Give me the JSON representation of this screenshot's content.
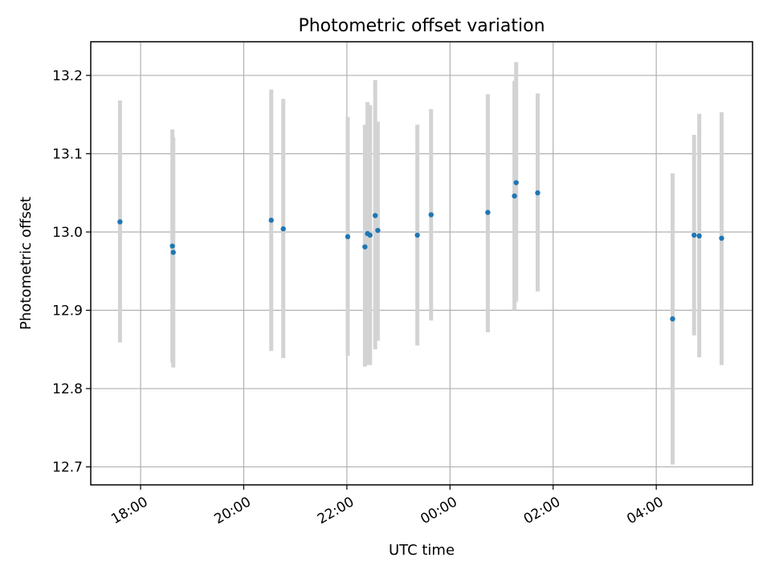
{
  "chart_data": {
    "type": "scatter",
    "title": "Photometric offset variation",
    "xlabel": "UTC time",
    "ylabel": "Photometric offset",
    "x_axis": "time",
    "x_start": "17:00",
    "xlim": [
      "17:02",
      "05:52"
    ],
    "ylim": [
      12.677,
      13.243
    ],
    "grid": true,
    "x_ticks": [
      "18:00",
      "20:00",
      "22:00",
      "00:00",
      "02:00",
      "04:00"
    ],
    "y_ticks": [
      12.7,
      12.8,
      12.9,
      13.0,
      13.1,
      13.2
    ],
    "y_tick_labels": [
      "12.7",
      "12.8",
      "12.9",
      "13.0",
      "13.1",
      "13.2"
    ],
    "colors": {
      "point": "#1f77b4",
      "errorbar": "#d3d3d3"
    },
    "points": [
      {
        "t": "17:36",
        "y": 13.013,
        "ymin": 12.859,
        "ymax": 13.168
      },
      {
        "t": "18:37",
        "y": 12.982,
        "ymin": 12.833,
        "ymax": 13.131
      },
      {
        "t": "18:38",
        "y": 12.974,
        "ymin": 12.827,
        "ymax": 13.121
      },
      {
        "t": "20:32",
        "y": 13.015,
        "ymin": 12.848,
        "ymax": 13.182
      },
      {
        "t": "20:46",
        "y": 13.004,
        "ymin": 12.839,
        "ymax": 13.17
      },
      {
        "t": "22:01",
        "y": 12.994,
        "ymin": 12.842,
        "ymax": 13.147
      },
      {
        "t": "22:21",
        "y": 12.981,
        "ymin": 12.828,
        "ymax": 13.137
      },
      {
        "t": "22:24",
        "y": 12.998,
        "ymin": 12.83,
        "ymax": 13.166
      },
      {
        "t": "22:27",
        "y": 12.996,
        "ymin": 12.83,
        "ymax": 13.162
      },
      {
        "t": "22:33",
        "y": 13.021,
        "ymin": 12.85,
        "ymax": 13.194
      },
      {
        "t": "22:36",
        "y": 13.002,
        "ymin": 12.861,
        "ymax": 13.141
      },
      {
        "t": "23:22",
        "y": 12.996,
        "ymin": 12.855,
        "ymax": 13.137
      },
      {
        "t": "23:38",
        "y": 13.022,
        "ymin": 12.887,
        "ymax": 13.157
      },
      {
        "t": "00:44",
        "y": 13.025,
        "ymin": 12.872,
        "ymax": 13.176
      },
      {
        "t": "01:15",
        "y": 13.046,
        "ymin": 12.9,
        "ymax": 13.193
      },
      {
        "t": "01:17",
        "y": 13.063,
        "ymin": 12.911,
        "ymax": 13.217
      },
      {
        "t": "01:42",
        "y": 13.05,
        "ymin": 12.924,
        "ymax": 13.177
      },
      {
        "t": "04:19",
        "y": 12.889,
        "ymin": 12.703,
        "ymax": 13.075
      },
      {
        "t": "04:44",
        "y": 12.996,
        "ymin": 12.868,
        "ymax": 13.124
      },
      {
        "t": "04:50",
        "y": 12.995,
        "ymin": 12.84,
        "ymax": 13.151
      },
      {
        "t": "05:16",
        "y": 12.992,
        "ymin": 12.83,
        "ymax": 13.153
      }
    ]
  }
}
